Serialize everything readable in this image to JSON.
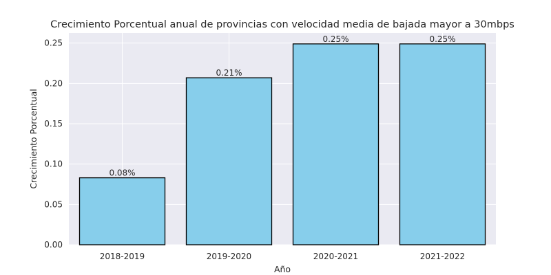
{
  "chart_data": {
    "type": "bar",
    "title": "Crecimiento Porcentual anual de provincias con velocidad media de bajada mayor a 30mbps",
    "xlabel": "Año",
    "ylabel": "Crecimiento Porcentual",
    "categories": [
      "2018-2019",
      "2019-2020",
      "2020-2021",
      "2021-2022"
    ],
    "values": [
      0.083,
      0.207,
      0.249,
      0.249
    ],
    "data_labels": [
      "0.08%",
      "0.21%",
      "0.25%",
      "0.25%"
    ],
    "ylim": [
      0,
      0.2625
    ],
    "yticks": [
      "0.00",
      "0.05",
      "0.10",
      "0.15",
      "0.20",
      "0.25"
    ],
    "ytick_values": [
      0,
      0.05,
      0.1,
      0.15,
      0.2,
      0.25
    ],
    "grid": true,
    "legend": "none",
    "colors": {
      "bar": "#87CEEB",
      "bar_edge": "#000000",
      "plot_background": "#EAEAF2",
      "grid": "#FFFFFF",
      "text": "#262626"
    }
  }
}
